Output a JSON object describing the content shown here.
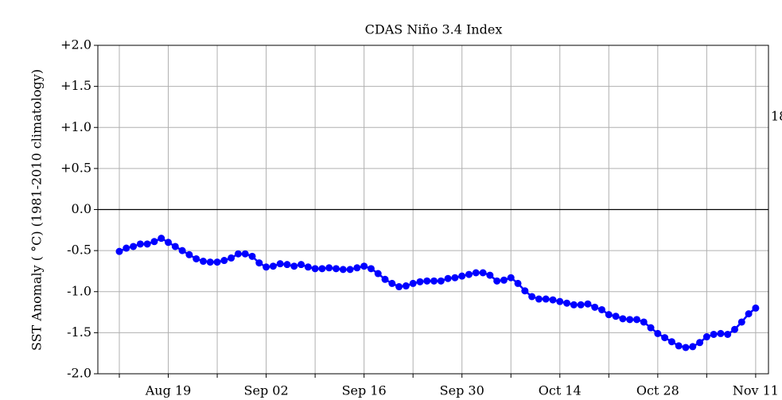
{
  "chart_data": {
    "type": "line",
    "title": "CDAS Niño 3.4 Index",
    "y_label": "SST Anomaly ( °C) (1981-2010 climatology)",
    "annotation": "18",
    "categories": [
      null,
      null,
      null,
      null,
      null,
      null,
      null,
      "Aug 19",
      null,
      null,
      null,
      null,
      null,
      null,
      null,
      null,
      null,
      null,
      null,
      null,
      null,
      "Sep 02",
      null,
      null,
      null,
      null,
      null,
      null,
      null,
      null,
      null,
      null,
      null,
      null,
      null,
      "Sep 16",
      null,
      null,
      null,
      null,
      null,
      null,
      null,
      null,
      null,
      null,
      null,
      null,
      null,
      "Sep 30",
      null,
      null,
      null,
      null,
      null,
      null,
      null,
      null,
      null,
      null,
      null,
      null,
      null,
      "Oct 14",
      null,
      null,
      null,
      null,
      null,
      null,
      null,
      null,
      null,
      null,
      null,
      null,
      null,
      "Oct 28",
      null,
      null,
      null,
      null,
      null,
      null,
      null,
      null,
      null,
      null,
      null,
      null,
      null,
      "Nov 11"
    ],
    "values": [
      -0.51,
      -0.47,
      -0.45,
      -0.42,
      -0.42,
      -0.39,
      -0.35,
      -0.4,
      -0.45,
      -0.5,
      -0.55,
      -0.6,
      -0.63,
      -0.64,
      -0.64,
      -0.62,
      -0.59,
      -0.54,
      -0.54,
      -0.57,
      -0.65,
      -0.7,
      -0.69,
      -0.66,
      -0.67,
      -0.69,
      -0.67,
      -0.7,
      -0.72,
      -0.72,
      -0.71,
      -0.72,
      -0.73,
      -0.73,
      -0.71,
      -0.69,
      -0.72,
      -0.78,
      -0.85,
      -0.9,
      -0.94,
      -0.93,
      -0.9,
      -0.88,
      -0.87,
      -0.87,
      -0.87,
      -0.84,
      -0.83,
      -0.81,
      -0.79,
      -0.77,
      -0.77,
      -0.8,
      -0.87,
      -0.86,
      -0.83,
      -0.9,
      -0.99,
      -1.06,
      -1.09,
      -1.09,
      -1.1,
      -1.12,
      -1.14,
      -1.16,
      -1.16,
      -1.15,
      -1.19,
      -1.22,
      -1.28,
      -1.3,
      -1.33,
      -1.34,
      -1.34,
      -1.37,
      -1.44,
      -1.51,
      -1.56,
      -1.61,
      -1.66,
      -1.68,
      -1.67,
      -1.62,
      -1.55,
      -1.52,
      -1.51,
      -1.52,
      -1.46,
      -1.37,
      -1.27,
      -1.2
    ],
    "color": "#0000ff",
    "ylim": [
      -2.0,
      2.0
    ],
    "yticks": [
      {
        "value": -2.0,
        "label": "-2.0"
      },
      {
        "value": -1.5,
        "label": "-1.5"
      },
      {
        "value": -1.0,
        "label": "-1.0"
      },
      {
        "value": -0.5,
        "label": "-0.5"
      },
      {
        "value": 0,
        "label": "0.0"
      },
      {
        "value": 0.5,
        "label": "+0.5"
      },
      {
        "value": 1.0,
        "label": "+1.0"
      },
      {
        "value": 1.5,
        "label": "+1.5"
      },
      {
        "value": 2.0,
        "label": "+2.0"
      }
    ],
    "grid": true,
    "zero_line": true
  }
}
